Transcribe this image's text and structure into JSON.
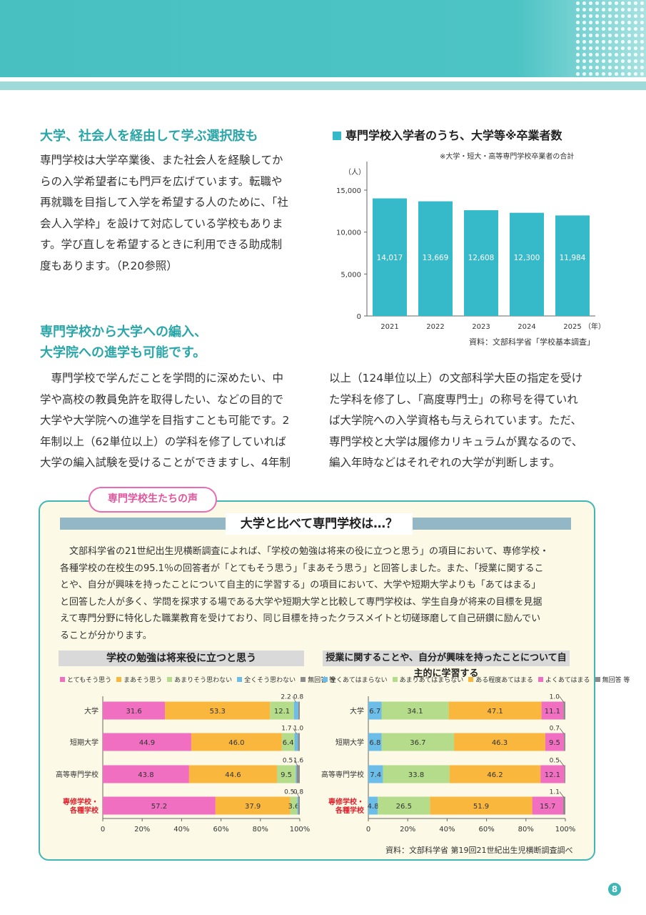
{
  "header": {
    "dots_color": "#ffffff",
    "band_color": "#4cc3c4"
  },
  "section1": {
    "title": "大学、社会人を経由して学ぶ選択肢も",
    "lines": [
      "専門学校は大学卒業後、また社会人を経験してか",
      "らの入学希望者にも門戸を広げています。転職や",
      "再就職を目指して入学を希望する人のために、「社",
      "会人入学枠」を設けて対応している学校もありま",
      "す。学び直しを希望するときに利用できる助成制",
      "度もあります。（P.20参照）"
    ]
  },
  "section2": {
    "title_line1": "専門学校から大学への編入、",
    "title_line2": "大学院への進学も可能です。",
    "left_lines": [
      "　専門学校で学んだことを学問的に深めたい、中",
      "学や高校の教員免許を取得したい、などの目的で",
      "大学や大学院への進学を目指すことも可能です。2",
      "年制以上（62単位以上）の学科を修了していれば",
      "大学の編入試験を受けることができますし、4年制"
    ],
    "right_lines": [
      "以上（124単位以上）の文部科学大臣の指定を受け",
      "た学科を修了し、「高度専門士」の称号を得ていれ",
      "ば大学院への入学資格も与えられています。ただ、",
      "専門学校と大学は履修カリキュラムが異なるので、",
      "編入年時などはそれぞれの大学が判断します。"
    ]
  },
  "chart_data": [
    {
      "type": "bar",
      "title": "専門学校入学者のうち、大学等※卒業者数",
      "note": "※大学・短大・高等専門学校卒業者の合計",
      "ylabel": "（人）",
      "xlabel": "（年）",
      "categories": [
        "2021",
        "2022",
        "2023",
        "2024",
        "2025"
      ],
      "values": [
        14017,
        13669,
        12608,
        12300,
        11984
      ],
      "value_labels": [
        "14,017",
        "13,669",
        "12,608",
        "12,300",
        "11,984"
      ],
      "ylim": [
        0,
        15000
      ],
      "yticks": [
        0,
        5000,
        10000,
        15000
      ],
      "ytick_labels": [
        "0",
        "5,000",
        "10,000",
        "15,000"
      ],
      "bar_color": "#36b9c8",
      "source": "資料：文部科学省「学校基本調査」"
    },
    {
      "type": "bar",
      "orientation": "horizontal-stacked",
      "title": "学校の勉強は将来役に立つと思う",
      "categories": [
        "大学",
        "短期大学",
        "高等専門学校",
        "専修学校・各種学校"
      ],
      "category_lines": [
        [
          "大学"
        ],
        [
          "短期大学"
        ],
        [
          "高等専門学校"
        ],
        [
          "専修学校・",
          "各種学校"
        ]
      ],
      "highlight_index": 3,
      "highlight_color": "#e0202c",
      "series": [
        {
          "name": "とてもそう思う",
          "color": "#f06fc0",
          "values": [
            31.6,
            44.9,
            43.8,
            57.2
          ]
        },
        {
          "name": "まあそう思う",
          "color": "#f9b73e",
          "values": [
            53.3,
            46.0,
            44.6,
            37.9
          ]
        },
        {
          "name": "あまりそう思わない",
          "color": "#b4dc8a",
          "values": [
            12.1,
            6.4,
            9.5,
            3.6
          ]
        },
        {
          "name": "全くそう思わない",
          "color": "#6dbde9",
          "values": [
            2.2,
            1.7,
            0.5,
            0.5
          ]
        },
        {
          "name": "無回答 等",
          "color": "#8c8c8c",
          "values": [
            0.8,
            1.0,
            1.6,
            0.8
          ]
        }
      ],
      "segment_labels": [
        [
          "31.6",
          "53.3",
          "12.1"
        ],
        [
          "44.9",
          "46.0",
          "6.4"
        ],
        [
          "43.8",
          "44.6",
          "9.5"
        ],
        [
          "57.2",
          "37.9",
          "3.6"
        ]
      ],
      "callouts": [
        [
          "2.2",
          "0.8"
        ],
        [
          "1.7",
          "1.0"
        ],
        [
          "0.5",
          "1.6"
        ],
        [
          "0.5",
          "0.8"
        ]
      ],
      "xlim": [
        0,
        100
      ],
      "xtick_labels": [
        "0",
        "20%",
        "40%",
        "60%",
        "80%",
        "100%"
      ]
    },
    {
      "type": "bar",
      "orientation": "horizontal-stacked",
      "title": "授業に関することや、自分が興味を持ったことについて自主的に学習する",
      "categories": [
        "大学",
        "短期大学",
        "高等専門学校",
        "専修学校・各種学校"
      ],
      "category_lines": [
        [
          "大学"
        ],
        [
          "短期大学"
        ],
        [
          "高等専門学校"
        ],
        [
          "専修学校・",
          "各種学校"
        ]
      ],
      "highlight_index": 3,
      "highlight_color": "#e0202c",
      "series": [
        {
          "name": "全くあてはまらない",
          "color": "#6dbde9",
          "values": [
            6.7,
            6.8,
            7.4,
            4.8
          ]
        },
        {
          "name": "あまりあてはまらない",
          "color": "#b4dc8a",
          "values": [
            34.1,
            36.7,
            33.8,
            26.5
          ]
        },
        {
          "name": "ある程度あてはまる",
          "color": "#f9b73e",
          "values": [
            47.1,
            46.3,
            46.2,
            51.9
          ]
        },
        {
          "name": "よくあてはまる",
          "color": "#f06fc0",
          "values": [
            11.1,
            9.5,
            12.1,
            15.7
          ]
        },
        {
          "name": "無回答 等",
          "color": "#8c8c8c",
          "values": [
            1.0,
            0.7,
            0.5,
            1.1
          ]
        }
      ],
      "segment_labels": [
        [
          "6.7",
          "34.1",
          "47.1",
          "11.1"
        ],
        [
          "6.8",
          "36.7",
          "46.3",
          "9.5"
        ],
        [
          "7.4",
          "33.8",
          "46.2",
          "12.1"
        ],
        [
          "4.8",
          "26.5",
          "51.9",
          "15.7"
        ]
      ],
      "callouts": [
        [
          "1.0"
        ],
        [
          "0.7"
        ],
        [
          "0.5"
        ],
        [
          "1.1"
        ]
      ],
      "xlim": [
        0,
        100
      ],
      "xtick_labels": [
        "0",
        "20%",
        "40%",
        "60%",
        "80%",
        "100%"
      ]
    }
  ],
  "voice": {
    "bubble": "専門学校生たちの声",
    "heading": "大学と比べて専門学校は…？",
    "lines": [
      "文部科学省の21世紀出生児横断調査によれば、「学校の勉強は将来の役に立つと思う」の項目において、専修学校・",
      "各種学校の在校生の95.1％の回答者が「とてもそう思う」「まあそう思う」と回答しました。また、「授業に関するこ",
      "とや、自分が興味を持ったことについて自主的に学習する」の項目において、大学や短期大学よりも「あてはまる」",
      "と回答した人が多く、学問を探求する場である大学や短期大学と比較して専門学校は、学生自身が将来の目標を見据",
      "えて専門分野に特化した職業教育を受けており、同じ目標を持ったクラスメイトと切磋琢磨して自己研鑽に励んでい",
      "ることが分かります。"
    ],
    "source": "資料：文部科学省 第19回21世紀出生児横断調査調べ"
  },
  "page_number": "8"
}
